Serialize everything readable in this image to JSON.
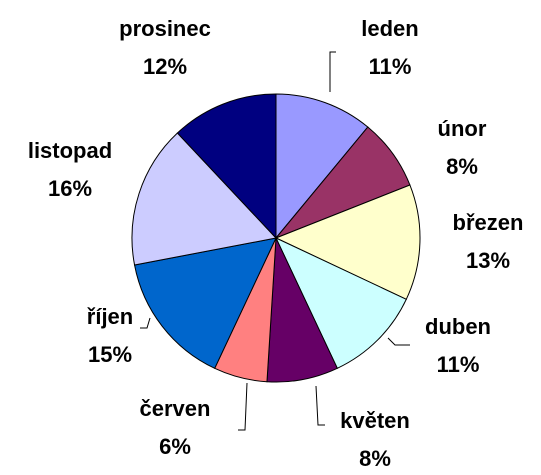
{
  "chart_data": {
    "type": "pie",
    "categories": [
      "leden",
      "únor",
      "březen",
      "duben",
      "květen",
      "červen",
      "říjen",
      "listopad",
      "prosinec"
    ],
    "values": [
      11,
      8,
      13,
      11,
      8,
      6,
      15,
      16,
      12
    ],
    "value_labels": [
      "11%",
      "8%",
      "13%",
      "11%",
      "8%",
      "6%",
      "15%",
      "16%",
      "12%"
    ],
    "colors": [
      "#9999ff",
      "#993366",
      "#ffffcc",
      "#ccffff",
      "#660066",
      "#ff8080",
      "#0066cc",
      "#ccccff",
      "#000080"
    ]
  }
}
